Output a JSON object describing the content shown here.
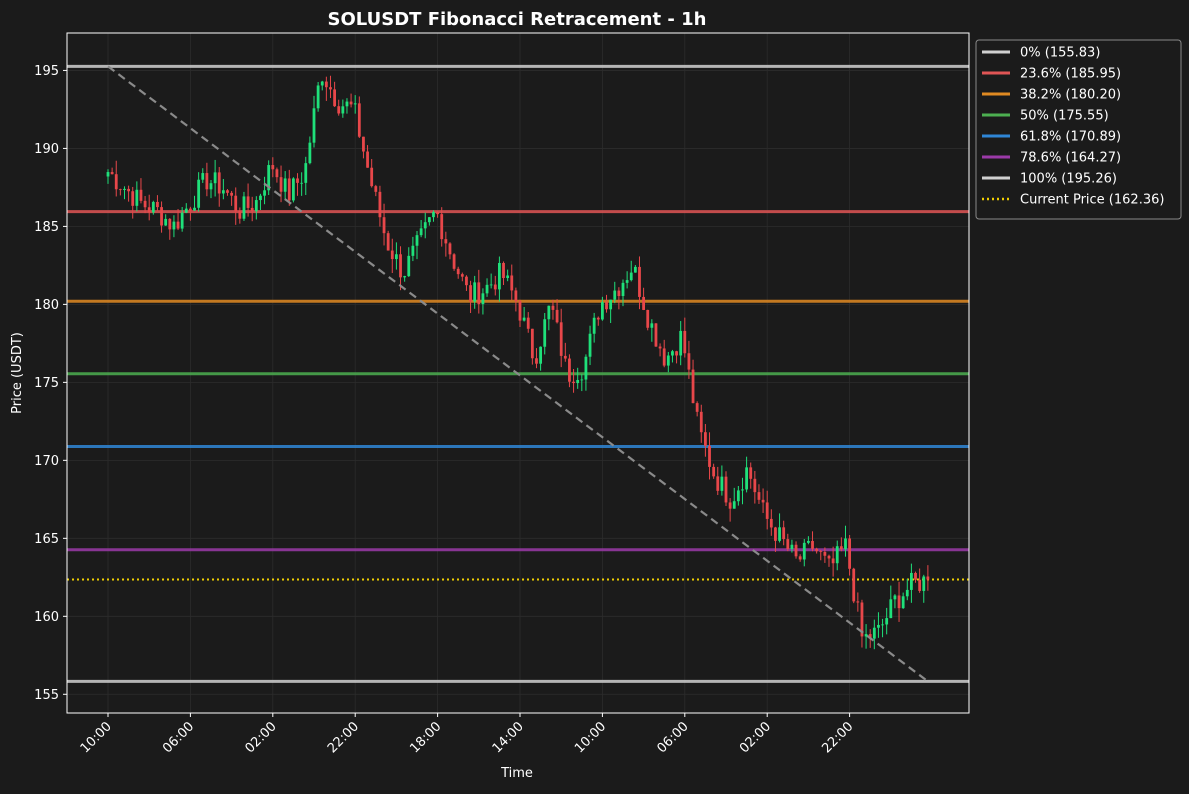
{
  "chart_data": {
    "type": "candlestick",
    "title": "SOLUSDT Fibonacci Retracement - 1h",
    "xlabel": "Time",
    "ylabel": "Price (USDT)",
    "ylim": [
      153.8,
      197.4
    ],
    "x_ticks": [
      "10:00",
      "06:00",
      "02:00",
      "22:00",
      "18:00",
      "14:00",
      "10:00",
      "06:00",
      "02:00",
      "22:00"
    ],
    "y_ticks": [
      155,
      160,
      165,
      170,
      175,
      180,
      185,
      190,
      195
    ],
    "grid": true,
    "legend_position": "outside-top-right",
    "candle_count": 200,
    "x_tick_step_candles": 20,
    "candle_colors": {
      "up": "#1fe07a",
      "down": "#e8474a"
    },
    "anchor_prices": [
      188.5,
      187.5,
      186.5,
      186.0,
      185.0,
      186.5,
      188.0,
      187.5,
      186.0,
      186.5,
      189.0,
      187.0,
      188.5,
      195.0,
      193.0,
      192.5,
      188.0,
      184.0,
      182.0,
      184.0,
      186.0,
      183.0,
      180.5,
      181.0,
      182.0,
      180.0,
      176.5,
      180.0,
      175.5,
      176.0,
      180.0,
      181.0,
      182.5,
      179.0,
      176.5,
      178.0,
      172.0,
      169.0,
      167.5,
      169.5,
      166.5,
      165.0,
      163.5,
      164.5,
      163.0,
      164.5,
      158.5,
      159.0,
      161.0,
      162.0,
      162.36
    ],
    "fib_levels": [
      {
        "label": "0% (155.83)",
        "price": 155.83,
        "color": "#d0d0d0"
      },
      {
        "label": "23.6% (185.95)",
        "price": 185.95,
        "color": "#e05555"
      },
      {
        "label": "38.2% (180.20)",
        "price": 180.2,
        "color": "#e08a22"
      },
      {
        "label": "50% (175.55)",
        "price": 175.55,
        "color": "#4caf50"
      },
      {
        "label": "61.8% (170.89)",
        "price": 170.89,
        "color": "#2f86d6"
      },
      {
        "label": "78.6% (164.27)",
        "price": 164.27,
        "color": "#9b3aa8"
      },
      {
        "label": "100% (195.26)",
        "price": 195.26,
        "color": "#d0d0d0"
      }
    ],
    "current_price": {
      "label": "Current Price (162.36)",
      "price": 162.36,
      "color": "#f0d000"
    },
    "trend_line": {
      "from": {
        "candle": 0,
        "price": 195.26
      },
      "to": {
        "candle": 199,
        "price": 155.83
      },
      "color": "#8a8a8a"
    }
  }
}
